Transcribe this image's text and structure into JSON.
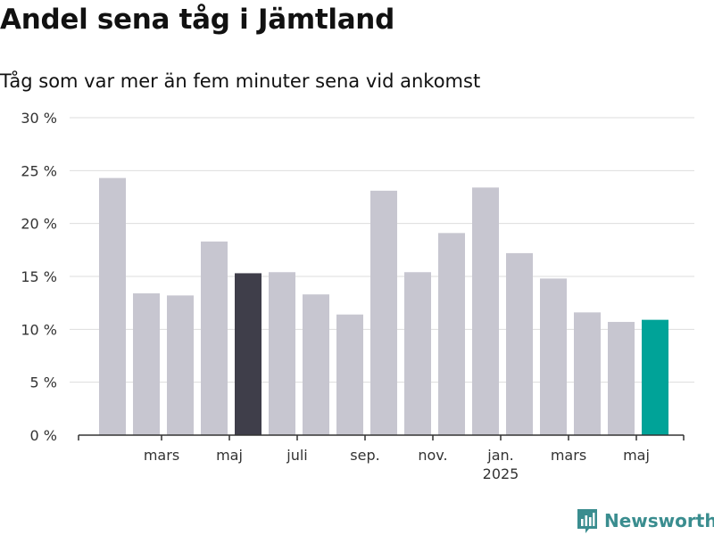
{
  "title": "Andel sena tåg i Jämtland",
  "subtitle": "Tåg som var mer än fem minuter sena vid ankomst",
  "brand": {
    "name": "Newsworthy",
    "icon": "newsworthy-logo-icon",
    "color": "#3a8d8f"
  },
  "chart_data": {
    "type": "bar",
    "title": "Andel sena tåg i Jämtland",
    "subtitle": "Tåg som var mer än fem minuter sena vid ankomst",
    "xlabel": "",
    "ylabel": "",
    "ylim": [
      0,
      30
    ],
    "grid": true,
    "y_ticks": [
      0,
      5,
      10,
      15,
      20,
      25,
      30
    ],
    "y_tick_labels": [
      "0 %",
      "5 %",
      "10 %",
      "15 %",
      "20 %",
      "25 %",
      "30 %"
    ],
    "categories": [
      "2024-02",
      "2024-03",
      "2024-04",
      "2024-05",
      "2024-06",
      "2024-07",
      "2024-08",
      "2024-09",
      "2024-10",
      "2024-11",
      "2024-12",
      "2025-01",
      "2025-02",
      "2025-03",
      "2025-04",
      "2025-05",
      "2025-06"
    ],
    "values": [
      24.3,
      13.4,
      13.2,
      18.3,
      15.3,
      15.4,
      13.3,
      11.4,
      23.1,
      15.4,
      19.1,
      23.4,
      17.2,
      14.8,
      11.6,
      10.7,
      10.9
    ],
    "x_tick_labels": [
      {
        "category": "2024-03",
        "label": "mars"
      },
      {
        "category": "2024-05",
        "label": "maj"
      },
      {
        "category": "2024-07",
        "label": "juli"
      },
      {
        "category": "2024-09",
        "label": "sep."
      },
      {
        "category": "2024-11",
        "label": "nov."
      },
      {
        "category": "2025-01",
        "label": "jan.",
        "sublabel": "2025"
      },
      {
        "category": "2025-03",
        "label": "mars"
      },
      {
        "category": "2025-05",
        "label": "maj"
      }
    ],
    "colors": {
      "default": "#c7c6d0",
      "highlight": "#3f3e4a",
      "latest": "#00a398",
      "grid": "#dddddd",
      "axis": "#333333"
    },
    "highlight_category": "2024-06",
    "latest_category": "2025-06"
  }
}
